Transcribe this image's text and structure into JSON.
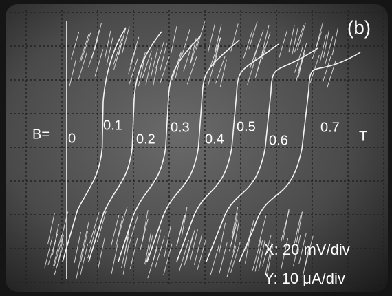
{
  "panel_label": "(b)",
  "field_prefix": "B=",
  "curve_labels": [
    "0",
    "0.1",
    "0.2",
    "0.3",
    "0.4",
    "0.5",
    "0.6",
    "0.7"
  ],
  "field_unit": "T",
  "x_scale": "X: 20 mV/div",
  "y_scale": "Y: 10 μA/div"
}
